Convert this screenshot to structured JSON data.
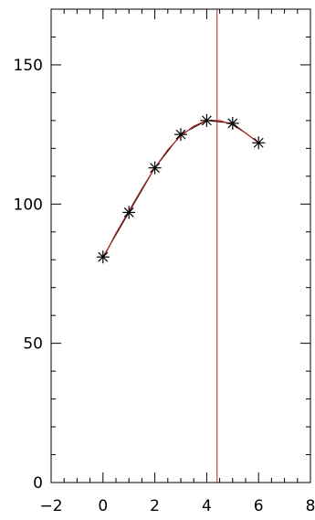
{
  "chart_data": {
    "type": "line",
    "title": "",
    "xlabel": "",
    "ylabel": "",
    "xlim": [
      -2,
      8
    ],
    "ylim": [
      0,
      170
    ],
    "x_ticks": [
      -2,
      0,
      2,
      4,
      6,
      8
    ],
    "x_tick_labels": [
      "−2",
      "0",
      "2",
      "4",
      "6",
      "8"
    ],
    "x_minor_step": 0.5,
    "y_ticks": [
      0,
      50,
      100,
      150
    ],
    "y_tick_labels": [
      "0",
      "50",
      "100",
      "150"
    ],
    "y_minor_step": 10,
    "grid": false,
    "legend": "none",
    "series": [
      {
        "x": [
          0,
          1,
          2,
          3,
          4,
          5,
          6
        ],
        "values": [
          81,
          97,
          113,
          125,
          130,
          129,
          122
        ],
        "marker": "asterisk",
        "marker_color": "#000000"
      }
    ],
    "fit_curve": {
      "x": [
        0,
        0.5,
        1,
        1.5,
        2,
        2.5,
        3,
        3.5,
        4,
        4.5,
        5,
        5.5,
        6
      ],
      "values": [
        80.5,
        89.5,
        97.5,
        105.5,
        113,
        119.5,
        124.5,
        128,
        130,
        130,
        128.5,
        125.5,
        122
      ],
      "color": "#b22222"
    },
    "vertical_line": {
      "x": 4.4,
      "color": "#b22222"
    },
    "colors": {
      "axes": "#000000",
      "fit": "#b22222",
      "marker": "#000000"
    }
  }
}
